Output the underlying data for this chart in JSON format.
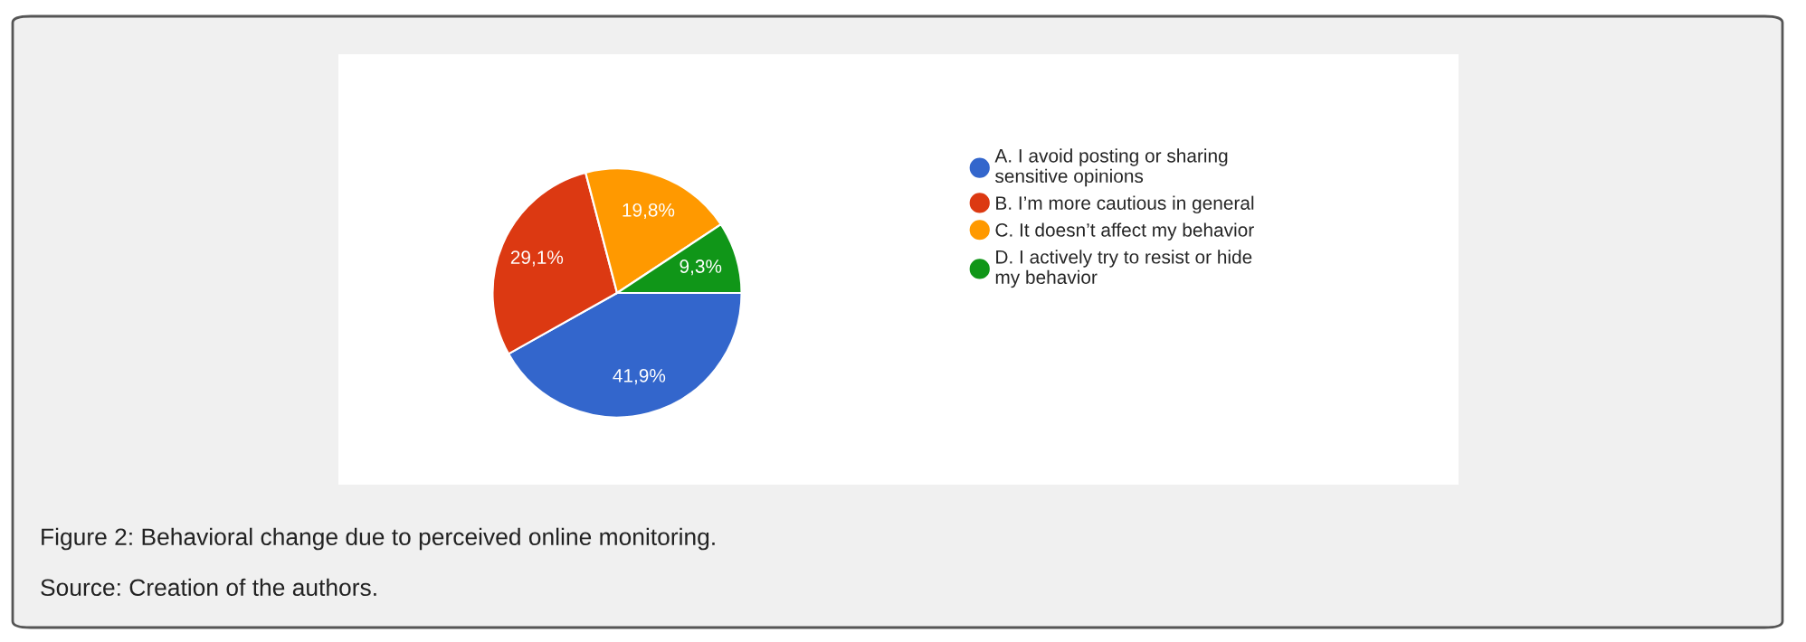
{
  "chart_data": {
    "type": "pie",
    "categories": [
      "A. I avoid posting or sharing sensitive opinions",
      "B. I’m more cautious in general",
      "C. It doesn’t affect my behavior",
      "D. I actively try to resist or hide my behavior"
    ],
    "values": [
      41.9,
      29.1,
      19.8,
      9.3
    ],
    "value_labels": [
      "41,9%",
      "29,1%",
      "19,8%",
      "9,3%"
    ],
    "colors": [
      "#3366cc",
      "#dc3912",
      "#ff9900",
      "#109618"
    ],
    "legend": "right",
    "annotations": [
      "Figure 2: Behavioral change due to perceived online monitoring.",
      "Source: Creation of the authors."
    ]
  }
}
